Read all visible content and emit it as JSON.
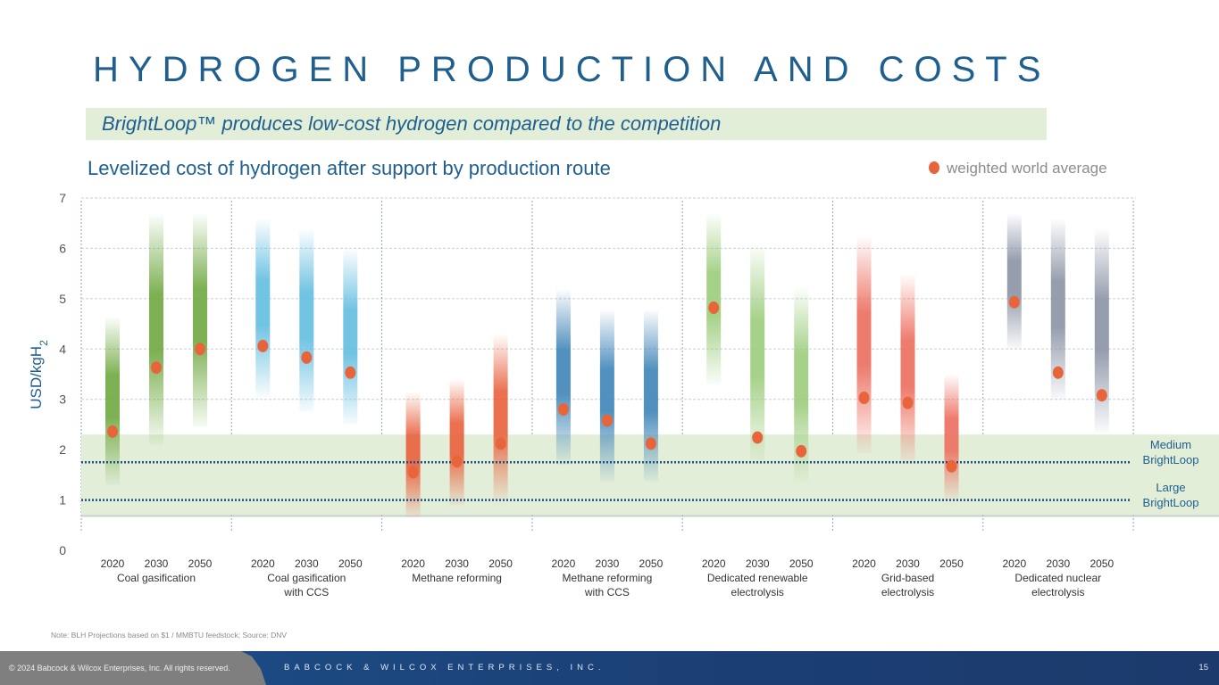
{
  "header": {
    "title": "HYDROGEN PRODUCTION AND COSTS",
    "subtitle": "BrightLoop™ produces low-cost hydrogen compared to the competition"
  },
  "chart_data": {
    "type": "range-bar-with-points",
    "title": "Levelized cost of hydrogen after support by production route",
    "ylabel": "USD/kgH",
    "ylabel_sub": "2",
    "ylim": [
      0,
      7
    ],
    "yticks": [
      "0",
      "1",
      "2",
      "3",
      "4",
      "5",
      "6",
      "7"
    ],
    "legend": {
      "label": "weighted world average",
      "placement": "top-right",
      "color": "#e8643a"
    },
    "years": [
      "2020",
      "2030",
      "2050"
    ],
    "groups": [
      {
        "name": [
          "Coal gasification"
        ],
        "color": "#6fa840",
        "ranges": [
          [
            1.3,
            4.65
          ],
          [
            2.1,
            6.7
          ],
          [
            2.45,
            6.7
          ]
        ],
        "averages": [
          2.36,
          3.63,
          4.0
        ]
      },
      {
        "name": [
          "Coal gasification",
          "with CCS"
        ],
        "color": "#62bde0",
        "ranges": [
          [
            3.05,
            6.6
          ],
          [
            2.75,
            6.4
          ],
          [
            2.5,
            6.0
          ]
        ],
        "averages": [
          4.06,
          3.83,
          3.53
        ]
      },
      {
        "name": [
          "Methane reforming"
        ],
        "color": "#e8603c",
        "ranges": [
          [
            0.65,
            3.15
          ],
          [
            0.9,
            3.4
          ],
          [
            1.0,
            4.3
          ]
        ],
        "averages": [
          1.55,
          1.77,
          2.12
        ]
      },
      {
        "name": [
          "Methane reforming",
          "with CCS"
        ],
        "color": "#3f85b8",
        "ranges": [
          [
            1.7,
            5.2
          ],
          [
            1.37,
            4.8
          ],
          [
            1.37,
            4.8
          ]
        ],
        "averages": [
          2.8,
          2.58,
          2.12
        ]
      },
      {
        "name": [
          "Dedicated renewable",
          "electrolysis"
        ],
        "color": "#9ccc7c",
        "ranges": [
          [
            3.3,
            6.7
          ],
          [
            1.72,
            6.1
          ],
          [
            1.37,
            5.25
          ]
        ],
        "averages": [
          4.82,
          2.24,
          1.97
        ]
      },
      {
        "name": [
          "Grid-based",
          "electrolysis"
        ],
        "color": "#ec6e5e",
        "ranges": [
          [
            1.93,
            6.25
          ],
          [
            1.72,
            5.5
          ],
          [
            1.0,
            3.5
          ]
        ],
        "averages": [
          3.03,
          2.93,
          1.67
        ]
      },
      {
        "name": [
          "Dedicated nuclear",
          "electrolysis"
        ],
        "color": "#8a93a5",
        "ranges": [
          [
            4.0,
            6.7
          ],
          [
            3.0,
            6.6
          ],
          [
            2.35,
            6.4
          ]
        ],
        "averages": [
          4.93,
          3.53,
          3.08
        ]
      }
    ],
    "brightloop_band": [
      0.7,
      2.3
    ],
    "reference_lines": [
      {
        "label": [
          "Medium",
          "BrightLoop"
        ],
        "value": 1.75
      },
      {
        "label": [
          "Large",
          "BrightLoop"
        ],
        "value": 1.0
      }
    ]
  },
  "note": "Note: BLH Projections based on $1 / MMBTU feedstock; Source: DNV",
  "footer": {
    "copyright": "© 2024 Babcock & Wilcox Enterprises, Inc. All rights reserved.",
    "company": "BABCOCK & WILCOX ENTERPRISES, INC.",
    "page": "15"
  }
}
